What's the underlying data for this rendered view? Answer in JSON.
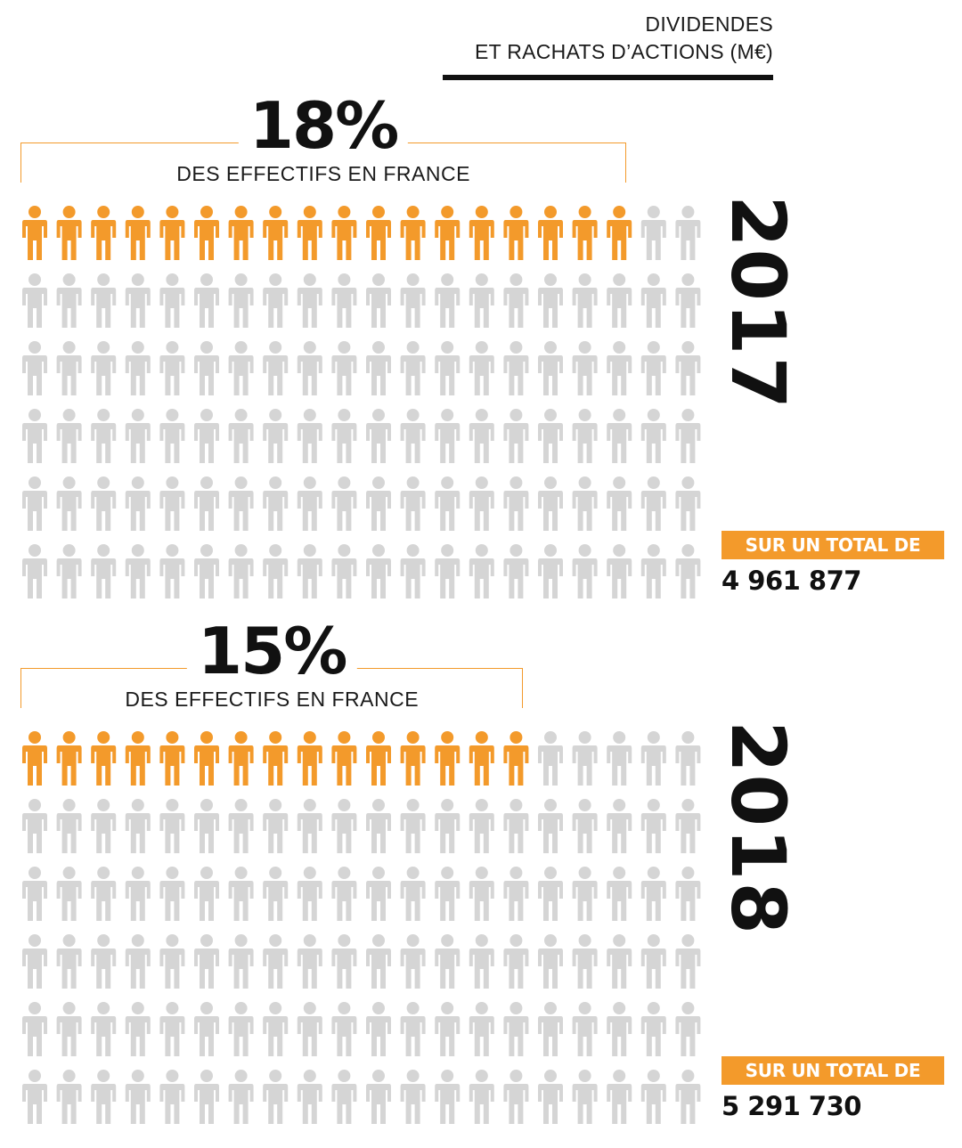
{
  "header": {
    "line1": "DIVIDENDES",
    "line2": "ET RACHATS D’ACTIONS (M€)"
  },
  "colors": {
    "highlight": "#f39a2b",
    "neutral": "#d5d5d5",
    "text": "#111111"
  },
  "icons": {
    "person": "person-icon"
  },
  "chart_data": [
    {
      "type": "pictogram",
      "year": "2017",
      "percent_label": "18%",
      "percent_value": 18,
      "subtitle": "DES EFFECTIFS EN FRANCE",
      "rows": 6,
      "columns": 20,
      "highlighted_icons": 18,
      "total_label": "SUR UN TOTAL DE",
      "total_value": "4 961 877"
    },
    {
      "type": "pictogram",
      "year": "2018",
      "percent_label": "15%",
      "percent_value": 15,
      "subtitle": "DES EFFECTIFS EN FRANCE",
      "rows": 6,
      "columns": 20,
      "highlighted_icons": 15,
      "total_label": "SUR UN TOTAL DE",
      "total_value": "5 291 730"
    }
  ]
}
